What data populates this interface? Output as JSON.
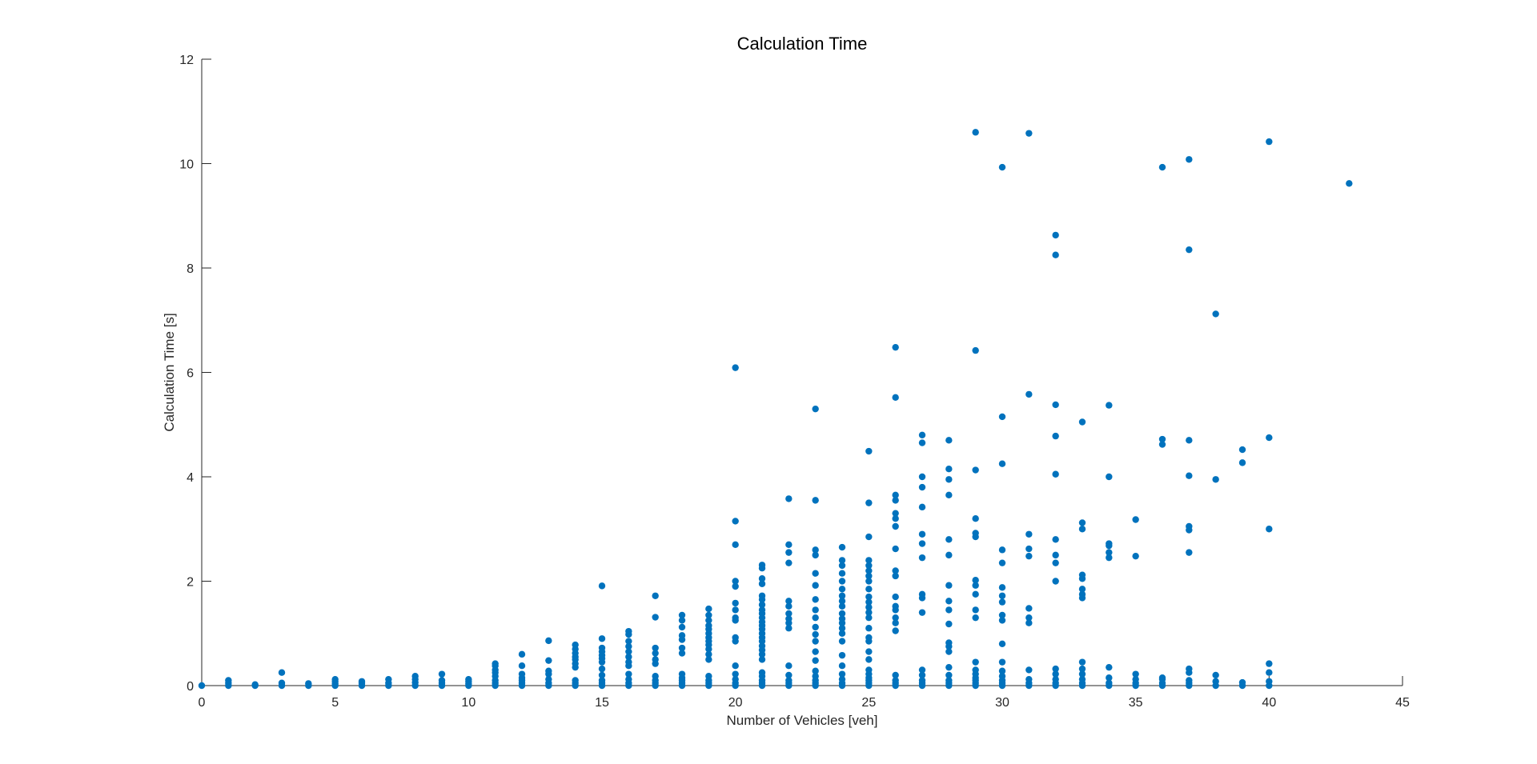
{
  "chart_data": {
    "type": "scatter",
    "title": "Calculation Time",
    "xlabel": "Number of Vehicles [veh]",
    "ylabel": "Calculation Time [s]",
    "xlim": [
      0,
      45
    ],
    "ylim": [
      0,
      12
    ],
    "xticks": [
      0,
      5,
      10,
      15,
      20,
      25,
      30,
      35,
      40,
      45
    ],
    "yticks": [
      0,
      2,
      4,
      6,
      8,
      10,
      12
    ],
    "grid": false,
    "marker_color": "#0072BD",
    "points": [
      [
        0,
        0.0
      ],
      [
        1,
        0.0
      ],
      [
        1,
        0.05
      ],
      [
        1,
        0.1
      ],
      [
        2,
        0.0
      ],
      [
        2,
        0.02
      ],
      [
        3,
        0.0
      ],
      [
        3,
        0.05
      ],
      [
        3,
        0.25
      ],
      [
        4,
        0.0
      ],
      [
        4,
        0.04
      ],
      [
        5,
        0.0
      ],
      [
        5,
        0.04
      ],
      [
        5,
        0.08
      ],
      [
        5,
        0.12
      ],
      [
        6,
        0.0
      ],
      [
        6,
        0.05
      ],
      [
        6,
        0.08
      ],
      [
        7,
        0.0
      ],
      [
        7,
        0.05
      ],
      [
        7,
        0.12
      ],
      [
        8,
        0.0
      ],
      [
        8,
        0.06
      ],
      [
        8,
        0.12
      ],
      [
        8,
        0.18
      ],
      [
        9,
        0.0
      ],
      [
        9,
        0.05
      ],
      [
        9,
        0.1
      ],
      [
        9,
        0.22
      ],
      [
        10,
        0.0
      ],
      [
        10,
        0.04
      ],
      [
        10,
        0.08
      ],
      [
        10,
        0.12
      ],
      [
        11,
        0.0
      ],
      [
        11,
        0.05
      ],
      [
        11,
        0.1
      ],
      [
        11,
        0.18
      ],
      [
        11,
        0.25
      ],
      [
        11,
        0.3
      ],
      [
        11,
        0.38
      ],
      [
        11,
        0.42
      ],
      [
        12,
        0.0
      ],
      [
        12,
        0.05
      ],
      [
        12,
        0.1
      ],
      [
        12,
        0.15
      ],
      [
        12,
        0.22
      ],
      [
        12,
        0.38
      ],
      [
        12,
        0.6
      ],
      [
        13,
        0.0
      ],
      [
        13,
        0.05
      ],
      [
        13,
        0.12
      ],
      [
        13,
        0.22
      ],
      [
        13,
        0.28
      ],
      [
        13,
        0.48
      ],
      [
        13,
        0.86
      ],
      [
        14,
        0.0
      ],
      [
        14,
        0.05
      ],
      [
        14,
        0.1
      ],
      [
        14,
        0.35
      ],
      [
        14,
        0.42
      ],
      [
        14,
        0.5
      ],
      [
        14,
        0.55
      ],
      [
        14,
        0.62
      ],
      [
        14,
        0.7
      ],
      [
        14,
        0.78
      ],
      [
        15,
        0.0
      ],
      [
        15,
        0.05
      ],
      [
        15,
        0.1
      ],
      [
        15,
        0.2
      ],
      [
        15,
        0.32
      ],
      [
        15,
        0.45
      ],
      [
        15,
        0.52
      ],
      [
        15,
        0.58
      ],
      [
        15,
        0.65
      ],
      [
        15,
        0.72
      ],
      [
        15,
        0.9
      ],
      [
        15,
        1.91
      ],
      [
        16,
        0.0
      ],
      [
        16,
        0.05
      ],
      [
        16,
        0.12
      ],
      [
        16,
        0.22
      ],
      [
        16,
        0.38
      ],
      [
        16,
        0.45
      ],
      [
        16,
        0.55
      ],
      [
        16,
        0.65
      ],
      [
        16,
        0.75
      ],
      [
        16,
        0.85
      ],
      [
        16,
        0.98
      ],
      [
        16,
        1.04
      ],
      [
        17,
        0.0
      ],
      [
        17,
        0.05
      ],
      [
        17,
        0.1
      ],
      [
        17,
        0.18
      ],
      [
        17,
        0.42
      ],
      [
        17,
        0.5
      ],
      [
        17,
        0.62
      ],
      [
        17,
        0.72
      ],
      [
        17,
        1.31
      ],
      [
        17,
        1.72
      ],
      [
        18,
        0.0
      ],
      [
        18,
        0.05
      ],
      [
        18,
        0.1
      ],
      [
        18,
        0.15
      ],
      [
        18,
        0.22
      ],
      [
        18,
        0.62
      ],
      [
        18,
        0.72
      ],
      [
        18,
        0.88
      ],
      [
        18,
        0.96
      ],
      [
        18,
        1.12
      ],
      [
        18,
        1.25
      ],
      [
        18,
        1.35
      ],
      [
        19,
        0.0
      ],
      [
        19,
        0.05
      ],
      [
        19,
        0.1
      ],
      [
        19,
        0.18
      ],
      [
        19,
        0.5
      ],
      [
        19,
        0.6
      ],
      [
        19,
        0.7
      ],
      [
        19,
        0.78
      ],
      [
        19,
        0.85
      ],
      [
        19,
        0.92
      ],
      [
        19,
        1.0
      ],
      [
        19,
        1.08
      ],
      [
        19,
        1.15
      ],
      [
        19,
        1.25
      ],
      [
        19,
        1.35
      ],
      [
        19,
        1.47
      ],
      [
        20,
        0.0
      ],
      [
        20,
        0.05
      ],
      [
        20,
        0.12
      ],
      [
        20,
        0.22
      ],
      [
        20,
        0.38
      ],
      [
        20,
        0.85
      ],
      [
        20,
        0.92
      ],
      [
        20,
        1.25
      ],
      [
        20,
        1.3
      ],
      [
        20,
        1.45
      ],
      [
        20,
        1.58
      ],
      [
        20,
        1.9
      ],
      [
        20,
        2.0
      ],
      [
        20,
        2.7
      ],
      [
        20,
        3.15
      ],
      [
        20,
        6.09
      ],
      [
        21,
        0.0
      ],
      [
        21,
        0.05
      ],
      [
        21,
        0.1
      ],
      [
        21,
        0.18
      ],
      [
        21,
        0.25
      ],
      [
        21,
        0.5
      ],
      [
        21,
        0.6
      ],
      [
        21,
        0.68
      ],
      [
        21,
        0.76
      ],
      [
        21,
        0.85
      ],
      [
        21,
        0.92
      ],
      [
        21,
        1.0
      ],
      [
        21,
        1.08
      ],
      [
        21,
        1.15
      ],
      [
        21,
        1.22
      ],
      [
        21,
        1.3
      ],
      [
        21,
        1.38
      ],
      [
        21,
        1.45
      ],
      [
        21,
        1.55
      ],
      [
        21,
        1.65
      ],
      [
        21,
        1.72
      ],
      [
        21,
        1.95
      ],
      [
        21,
        2.05
      ],
      [
        21,
        2.25
      ],
      [
        21,
        2.31
      ],
      [
        22,
        0.0
      ],
      [
        22,
        0.05
      ],
      [
        22,
        0.1
      ],
      [
        22,
        0.2
      ],
      [
        22,
        0.38
      ],
      [
        22,
        1.1
      ],
      [
        22,
        1.2
      ],
      [
        22,
        1.28
      ],
      [
        22,
        1.38
      ],
      [
        22,
        1.52
      ],
      [
        22,
        1.62
      ],
      [
        22,
        2.35
      ],
      [
        22,
        2.55
      ],
      [
        22,
        2.7
      ],
      [
        22,
        3.58
      ],
      [
        23,
        0.0
      ],
      [
        23,
        0.05
      ],
      [
        23,
        0.1
      ],
      [
        23,
        0.18
      ],
      [
        23,
        0.28
      ],
      [
        23,
        0.48
      ],
      [
        23,
        0.65
      ],
      [
        23,
        0.85
      ],
      [
        23,
        0.98
      ],
      [
        23,
        1.12
      ],
      [
        23,
        1.3
      ],
      [
        23,
        1.45
      ],
      [
        23,
        1.65
      ],
      [
        23,
        1.92
      ],
      [
        23,
        2.15
      ],
      [
        23,
        2.5
      ],
      [
        23,
        2.6
      ],
      [
        23,
        3.55
      ],
      [
        23,
        5.3
      ],
      [
        24,
        0.0
      ],
      [
        24,
        0.05
      ],
      [
        24,
        0.12
      ],
      [
        24,
        0.22
      ],
      [
        24,
        0.38
      ],
      [
        24,
        0.58
      ],
      [
        24,
        0.85
      ],
      [
        24,
        1.0
      ],
      [
        24,
        1.1
      ],
      [
        24,
        1.2
      ],
      [
        24,
        1.28
      ],
      [
        24,
        1.38
      ],
      [
        24,
        1.52
      ],
      [
        24,
        1.62
      ],
      [
        24,
        1.72
      ],
      [
        24,
        1.85
      ],
      [
        24,
        2.0
      ],
      [
        24,
        2.15
      ],
      [
        24,
        2.3
      ],
      [
        24,
        2.4
      ],
      [
        24,
        2.65
      ],
      [
        25,
        0.0
      ],
      [
        25,
        0.05
      ],
      [
        25,
        0.1
      ],
      [
        25,
        0.15
      ],
      [
        25,
        0.22
      ],
      [
        25,
        0.3
      ],
      [
        25,
        0.5
      ],
      [
        25,
        0.65
      ],
      [
        25,
        0.85
      ],
      [
        25,
        0.92
      ],
      [
        25,
        1.1
      ],
      [
        25,
        1.3
      ],
      [
        25,
        1.4
      ],
      [
        25,
        1.5
      ],
      [
        25,
        1.6
      ],
      [
        25,
        1.7
      ],
      [
        25,
        1.85
      ],
      [
        25,
        2.0
      ],
      [
        25,
        2.1
      ],
      [
        25,
        2.2
      ],
      [
        25,
        2.3
      ],
      [
        25,
        2.4
      ],
      [
        25,
        2.85
      ],
      [
        25,
        3.5
      ],
      [
        25,
        4.49
      ],
      [
        26,
        0.0
      ],
      [
        26,
        0.05
      ],
      [
        26,
        0.1
      ],
      [
        26,
        0.2
      ],
      [
        26,
        1.05
      ],
      [
        26,
        1.2
      ],
      [
        26,
        1.3
      ],
      [
        26,
        1.45
      ],
      [
        26,
        1.52
      ],
      [
        26,
        1.7
      ],
      [
        26,
        2.1
      ],
      [
        26,
        2.2
      ],
      [
        26,
        2.62
      ],
      [
        26,
        3.05
      ],
      [
        26,
        3.2
      ],
      [
        26,
        3.3
      ],
      [
        26,
        3.55
      ],
      [
        26,
        3.65
      ],
      [
        26,
        5.52
      ],
      [
        26,
        6.48
      ],
      [
        27,
        0.0
      ],
      [
        27,
        0.05
      ],
      [
        27,
        0.1
      ],
      [
        27,
        0.2
      ],
      [
        27,
        0.3
      ],
      [
        27,
        1.4
      ],
      [
        27,
        1.68
      ],
      [
        27,
        1.75
      ],
      [
        27,
        2.45
      ],
      [
        27,
        2.72
      ],
      [
        27,
        2.9
      ],
      [
        27,
        3.42
      ],
      [
        27,
        3.8
      ],
      [
        27,
        4.0
      ],
      [
        27,
        4.65
      ],
      [
        27,
        4.8
      ],
      [
        28,
        0.0
      ],
      [
        28,
        0.05
      ],
      [
        28,
        0.1
      ],
      [
        28,
        0.2
      ],
      [
        28,
        0.35
      ],
      [
        28,
        0.65
      ],
      [
        28,
        0.75
      ],
      [
        28,
        0.82
      ],
      [
        28,
        1.18
      ],
      [
        28,
        1.45
      ],
      [
        28,
        1.62
      ],
      [
        28,
        1.92
      ],
      [
        28,
        2.5
      ],
      [
        28,
        2.8
      ],
      [
        28,
        3.65
      ],
      [
        28,
        3.95
      ],
      [
        28,
        4.15
      ],
      [
        28,
        4.7
      ],
      [
        29,
        0.0
      ],
      [
        29,
        0.05
      ],
      [
        29,
        0.1
      ],
      [
        29,
        0.15
      ],
      [
        29,
        0.22
      ],
      [
        29,
        0.3
      ],
      [
        29,
        0.45
      ],
      [
        29,
        1.3
      ],
      [
        29,
        1.45
      ],
      [
        29,
        1.75
      ],
      [
        29,
        1.92
      ],
      [
        29,
        2.02
      ],
      [
        29,
        2.85
      ],
      [
        29,
        2.92
      ],
      [
        29,
        3.2
      ],
      [
        29,
        4.13
      ],
      [
        29,
        6.42
      ],
      [
        29,
        10.6
      ],
      [
        30,
        0.0
      ],
      [
        30,
        0.05
      ],
      [
        30,
        0.1
      ],
      [
        30,
        0.18
      ],
      [
        30,
        0.28
      ],
      [
        30,
        0.45
      ],
      [
        30,
        0.8
      ],
      [
        30,
        1.25
      ],
      [
        30,
        1.35
      ],
      [
        30,
        1.6
      ],
      [
        30,
        1.72
      ],
      [
        30,
        1.88
      ],
      [
        30,
        2.35
      ],
      [
        30,
        2.6
      ],
      [
        30,
        4.25
      ],
      [
        30,
        5.15
      ],
      [
        30,
        9.93
      ],
      [
        31,
        0.0
      ],
      [
        31,
        0.05
      ],
      [
        31,
        0.12
      ],
      [
        31,
        0.3
      ],
      [
        31,
        1.2
      ],
      [
        31,
        1.3
      ],
      [
        31,
        1.48
      ],
      [
        31,
        2.48
      ],
      [
        31,
        2.62
      ],
      [
        31,
        2.9
      ],
      [
        31,
        5.58
      ],
      [
        31,
        10.58
      ],
      [
        32,
        0.0
      ],
      [
        32,
        0.05
      ],
      [
        32,
        0.12
      ],
      [
        32,
        0.22
      ],
      [
        32,
        0.32
      ],
      [
        32,
        2.0
      ],
      [
        32,
        2.35
      ],
      [
        32,
        2.5
      ],
      [
        32,
        2.8
      ],
      [
        32,
        4.05
      ],
      [
        32,
        4.78
      ],
      [
        32,
        5.38
      ],
      [
        32,
        8.25
      ],
      [
        32,
        8.63
      ],
      [
        33,
        0.0
      ],
      [
        33,
        0.05
      ],
      [
        33,
        0.12
      ],
      [
        33,
        0.22
      ],
      [
        33,
        0.32
      ],
      [
        33,
        0.45
      ],
      [
        33,
        1.68
      ],
      [
        33,
        1.75
      ],
      [
        33,
        1.85
      ],
      [
        33,
        2.05
      ],
      [
        33,
        2.12
      ],
      [
        33,
        3.0
      ],
      [
        33,
        3.12
      ],
      [
        33,
        5.05
      ],
      [
        34,
        0.0
      ],
      [
        34,
        0.05
      ],
      [
        34,
        0.15
      ],
      [
        34,
        0.35
      ],
      [
        34,
        2.45
      ],
      [
        34,
        2.55
      ],
      [
        34,
        2.68
      ],
      [
        34,
        2.72
      ],
      [
        34,
        4.0
      ],
      [
        34,
        5.37
      ],
      [
        35,
        0.0
      ],
      [
        35,
        0.05
      ],
      [
        35,
        0.12
      ],
      [
        35,
        0.22
      ],
      [
        35,
        2.48
      ],
      [
        35,
        3.18
      ],
      [
        36,
        0.0
      ],
      [
        36,
        0.05
      ],
      [
        36,
        0.12
      ],
      [
        36,
        0.15
      ],
      [
        36,
        4.62
      ],
      [
        36,
        4.72
      ],
      [
        36,
        9.93
      ],
      [
        37,
        0.0
      ],
      [
        37,
        0.05
      ],
      [
        37,
        0.1
      ],
      [
        37,
        0.25
      ],
      [
        37,
        0.32
      ],
      [
        37,
        2.55
      ],
      [
        37,
        2.98
      ],
      [
        37,
        3.05
      ],
      [
        37,
        4.02
      ],
      [
        37,
        4.7
      ],
      [
        37,
        8.35
      ],
      [
        37,
        10.08
      ],
      [
        38,
        0.0
      ],
      [
        38,
        0.08
      ],
      [
        38,
        0.2
      ],
      [
        38,
        3.95
      ],
      [
        38,
        7.12
      ],
      [
        39,
        0.0
      ],
      [
        39,
        0.06
      ],
      [
        39,
        4.27
      ],
      [
        39,
        4.52
      ],
      [
        40,
        0.0
      ],
      [
        40,
        0.08
      ],
      [
        40,
        0.25
      ],
      [
        40,
        0.42
      ],
      [
        40,
        3.0
      ],
      [
        40,
        4.75
      ],
      [
        40,
        10.42
      ],
      [
        43,
        9.62
      ]
    ]
  }
}
